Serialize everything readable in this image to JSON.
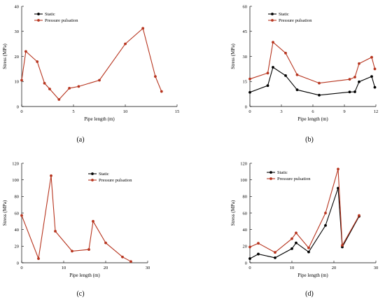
{
  "colors": {
    "static": "#000000",
    "pulsation": "#b7351f",
    "axis": "#000000"
  },
  "chart_data": [
    {
      "id": "a",
      "type": "line",
      "panel_label": "(a)",
      "xlabel": "Pipe length (m)",
      "ylabel": "Stress (MPa)",
      "xlim": [
        0,
        15
      ],
      "ylim": [
        0,
        40
      ],
      "xticks": [
        0,
        5,
        10,
        15
      ],
      "yticks": [
        0,
        10,
        20,
        30,
        40
      ],
      "legend": {
        "position": "top-left",
        "entries": [
          "Static",
          "Pressure pulsation"
        ]
      },
      "series": [
        {
          "name": "Static",
          "x": [],
          "y": [],
          "color": "#000000"
        },
        {
          "name": "Pressure pulsation",
          "x": [
            0,
            0.4,
            1.5,
            2.2,
            2.7,
            3.6,
            4.6,
            5.5,
            7.5,
            10,
            11.7,
            12.9,
            13.5
          ],
          "y": [
            10.5,
            22,
            17.9,
            9.3,
            7,
            2.8,
            7.3,
            8,
            10.5,
            25,
            31.2,
            12,
            6
          ],
          "color": "#b7351f"
        }
      ]
    },
    {
      "id": "b",
      "type": "line",
      "panel_label": "(b)",
      "xlabel": "Pipe length (m)",
      "ylabel": "Stress (MPa)",
      "xlim": [
        0,
        12
      ],
      "ylim": [
        0,
        60
      ],
      "xticks": [
        0,
        3,
        6,
        9,
        12
      ],
      "yticks": [
        0,
        15,
        30,
        45,
        60
      ],
      "legend": {
        "position": "top-left",
        "entries": [
          "Static",
          "Pressure pulsation"
        ]
      },
      "series": [
        {
          "name": "Static",
          "x": [
            0,
            1.7,
            2.2,
            3.4,
            4.5,
            6.6,
            9.5,
            10,
            10.4,
            11.6,
            11.9
          ],
          "y": [
            8.5,
            12.5,
            23.5,
            18.5,
            10,
            6.8,
            8.7,
            8.8,
            14.8,
            18,
            11.5
          ],
          "color": "#000000"
        },
        {
          "name": "Pressure pulsation",
          "x": [
            0,
            1.7,
            2.2,
            3.4,
            4.5,
            6.6,
            9.5,
            10,
            10.4,
            11.6,
            11.9
          ],
          "y": [
            16.5,
            20,
            38.5,
            32,
            19,
            14,
            16.3,
            17.6,
            25.7,
            29.5,
            22.5
          ],
          "color": "#b7351f"
        }
      ]
    },
    {
      "id": "c",
      "type": "line",
      "panel_label": "(c)",
      "xlabel": "Pipe length (m)",
      "ylabel": "Stress (MPa)",
      "xlim": [
        0,
        30
      ],
      "ylim": [
        0,
        120
      ],
      "xticks": [
        0,
        10,
        20,
        30
      ],
      "yticks": [
        0,
        20,
        40,
        60,
        80,
        100,
        120
      ],
      "legend": {
        "position": "top-right",
        "entries": [
          "Static",
          "Pressure pulsation"
        ]
      },
      "series": [
        {
          "name": "Static",
          "x": [],
          "y": [],
          "color": "#000000"
        },
        {
          "name": "Pressure pulsation",
          "x": [
            0,
            4,
            7,
            8,
            12,
            16,
            17,
            20,
            24,
            26
          ],
          "y": [
            57,
            5,
            105,
            38,
            14,
            16,
            50,
            24,
            7,
            1.5
          ],
          "color": "#b7351f"
        }
      ]
    },
    {
      "id": "d",
      "type": "line",
      "panel_label": "(d)",
      "xlabel": "Pipe length (m)",
      "ylabel": "Stress (MPa)",
      "xlim": [
        0,
        30
      ],
      "ylim": [
        0,
        120
      ],
      "xticks": [
        0,
        10,
        20,
        30
      ],
      "yticks": [
        0,
        20,
        40,
        60,
        80,
        100,
        120
      ],
      "legend": {
        "position": "top-left",
        "entries": [
          "Static",
          "Pressure pulsation"
        ]
      },
      "series": [
        {
          "name": "Static",
          "x": [
            0,
            2,
            6,
            10,
            11,
            14,
            18,
            21,
            22,
            26
          ],
          "y": [
            5,
            10.5,
            6,
            17,
            24,
            13,
            45,
            90,
            19,
            56
          ],
          "color": "#000000"
        },
        {
          "name": "Pressure pulsation",
          "x": [
            0,
            2,
            6,
            10,
            11,
            14,
            18,
            21,
            22,
            26
          ],
          "y": [
            19,
            23.5,
            12.5,
            29,
            36,
            18,
            60,
            113,
            21,
            57
          ],
          "color": "#b7351f"
        }
      ]
    }
  ]
}
